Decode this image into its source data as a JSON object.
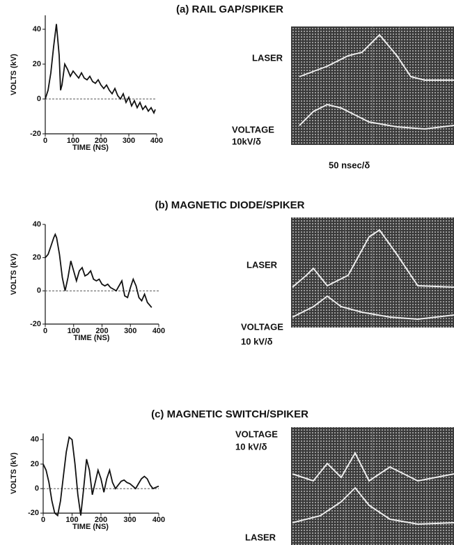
{
  "chart_data": [
    {
      "type": "line",
      "title": "(a) RAIL GAP/SPIKER",
      "xlabel": "TIME (NS)",
      "ylabel": "VOLTS (kV)",
      "x": [
        0,
        10,
        20,
        30,
        40,
        50,
        55,
        60,
        70,
        80,
        90,
        100,
        110,
        120,
        130,
        140,
        150,
        160,
        170,
        180,
        190,
        200,
        210,
        220,
        230,
        240,
        250,
        260,
        270,
        280,
        290,
        300,
        310,
        320,
        330,
        340,
        350,
        360,
        370,
        380,
        390,
        395
      ],
      "values": [
        0,
        5,
        15,
        30,
        43,
        25,
        5,
        8,
        20,
        17,
        13,
        16,
        14,
        12,
        15,
        12,
        11,
        13,
        10,
        9,
        11,
        8,
        6,
        8,
        5,
        3,
        6,
        2,
        0,
        3,
        -2,
        1,
        -4,
        -1,
        -5,
        -2,
        -6,
        -4,
        -7,
        -5,
        -8,
        -6
      ],
      "color": "#111111",
      "xlim": [
        0,
        400
      ],
      "ylim": [
        -20,
        48
      ],
      "xticks": [
        0,
        100,
        200,
        300,
        400
      ],
      "yticks": [
        -20,
        0,
        20,
        40
      ],
      "annotations": [
        "LASER",
        "VOLTAGE",
        "10kV/δ",
        "50 nsec/δ"
      ]
    },
    {
      "type": "line",
      "title": "(b) MAGNETIC DIODE/SPIKER",
      "xlabel": "TIME (NS)",
      "ylabel": "VOLTS (kV)",
      "x": [
        0,
        10,
        20,
        30,
        35,
        40,
        50,
        60,
        70,
        80,
        90,
        100,
        110,
        120,
        130,
        140,
        150,
        160,
        170,
        180,
        190,
        200,
        210,
        220,
        230,
        240,
        250,
        260,
        270,
        280,
        290,
        300,
        310,
        320,
        330,
        340,
        350,
        360,
        370,
        375
      ],
      "values": [
        20,
        22,
        27,
        32,
        34,
        32,
        22,
        8,
        0,
        8,
        18,
        12,
        6,
        12,
        14,
        9,
        10,
        12,
        7,
        6,
        7,
        4,
        3,
        4,
        2,
        1,
        0,
        3,
        6,
        -3,
        -4,
        2,
        7,
        3,
        -4,
        -6,
        -2,
        -7,
        -9,
        -10
      ],
      "color": "#111111",
      "xlim": [
        0,
        400
      ],
      "ylim": [
        -20,
        40
      ],
      "xticks": [
        0,
        100,
        200,
        300,
        400
      ],
      "yticks": [
        -20,
        0,
        20,
        40
      ],
      "annotations": [
        "LASER",
        "VOLTAGE",
        "10 kV/δ"
      ]
    },
    {
      "type": "line",
      "title": "(c) MAGNETIC SWITCH/SPIKER",
      "xlabel": "TIME (NS)",
      "ylabel": "VOLTS (kV)",
      "x": [
        0,
        10,
        20,
        30,
        40,
        50,
        60,
        70,
        80,
        90,
        100,
        110,
        120,
        130,
        140,
        150,
        160,
        170,
        180,
        190,
        200,
        210,
        220,
        230,
        240,
        250,
        260,
        270,
        280,
        290,
        300,
        310,
        320,
        330,
        340,
        350,
        360,
        370,
        380,
        390,
        400
      ],
      "values": [
        20,
        15,
        5,
        -10,
        -20,
        -22,
        -10,
        10,
        30,
        42,
        40,
        20,
        -5,
        -22,
        0,
        24,
        15,
        -5,
        5,
        15,
        8,
        -3,
        8,
        15,
        5,
        0,
        3,
        6,
        7,
        5,
        4,
        2,
        0,
        4,
        8,
        10,
        8,
        3,
        0,
        1,
        2
      ],
      "color": "#111111",
      "xlim": [
        0,
        400
      ],
      "ylim": [
        -25,
        45
      ],
      "xticks": [
        0,
        100,
        200,
        300,
        400
      ],
      "yticks": [
        -20,
        0,
        20,
        40
      ],
      "annotations": [
        "VOLTAGE",
        "10 kV/δ",
        "LASER"
      ]
    }
  ]
}
